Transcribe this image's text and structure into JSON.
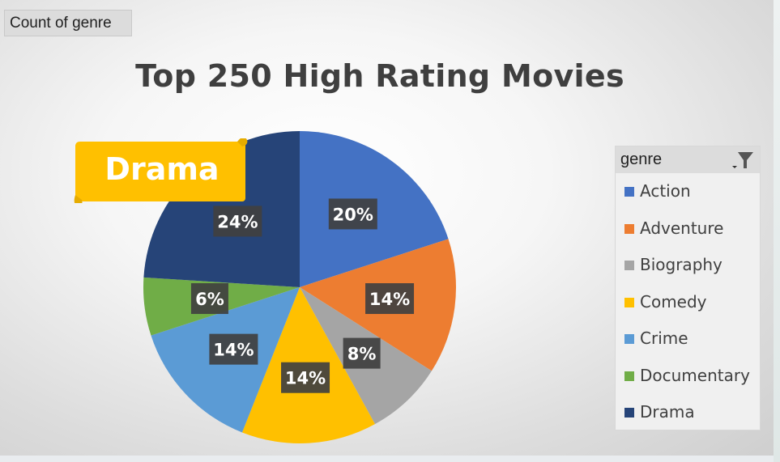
{
  "field_button": {
    "label": "Count of genre"
  },
  "callout": {
    "label": "Drama",
    "color": "#FFC000"
  },
  "legend": {
    "header": "genre",
    "filter_icon": "filter-icon"
  },
  "chart_data": {
    "type": "pie",
    "title": "Top 250 High Rating Movies",
    "categories": [
      "Action",
      "Adventure",
      "Biography",
      "Comedy",
      "Crime",
      "Documentary",
      "Drama"
    ],
    "values": [
      20,
      14,
      8,
      14,
      14,
      6,
      24
    ],
    "labels": [
      "20%",
      "14%",
      "8%",
      "14%",
      "14%",
      "6%",
      "24%"
    ],
    "colors": [
      "#4472C4",
      "#ED7D31",
      "#A5A5A5",
      "#FFC000",
      "#5B9BD5",
      "#70AD47",
      "#264478"
    ],
    "legend_position": "right"
  }
}
